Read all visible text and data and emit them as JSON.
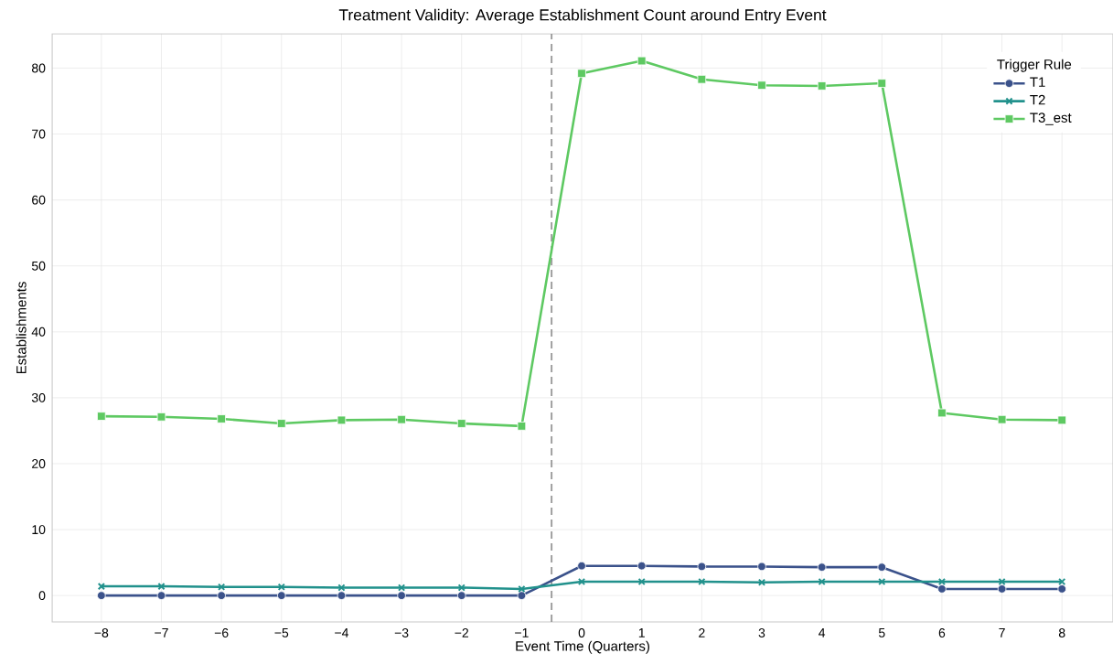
{
  "chart_data": {
    "type": "line",
    "title": "Treatment Validity: Average Establishment Count around Entry Event",
    "xlabel": "Event Time (Quarters)",
    "ylabel": "Establishments",
    "legend_title": "Trigger Rule",
    "x": [
      -8,
      -7,
      -6,
      -5,
      -4,
      -3,
      -2,
      -1,
      0,
      1,
      2,
      3,
      4,
      5,
      6,
      7,
      8
    ],
    "series": [
      {
        "name": "T1",
        "color": "#3b528b",
        "marker": "circle",
        "values": [
          0,
          0,
          0,
          0,
          0,
          0,
          0,
          0,
          4.5,
          4.5,
          4.4,
          4.4,
          4.3,
          4.3,
          1.0,
          1.0,
          1.0
        ]
      },
      {
        "name": "T2",
        "color": "#21918c",
        "marker": "cross",
        "values": [
          1.4,
          1.4,
          1.3,
          1.3,
          1.2,
          1.2,
          1.2,
          1.0,
          2.1,
          2.1,
          2.1,
          2.0,
          2.1,
          2.1,
          2.1,
          2.1,
          2.1
        ]
      },
      {
        "name": "T3_est",
        "color": "#5ec962",
        "marker": "square",
        "values": [
          27.2,
          27.1,
          26.8,
          26.1,
          26.6,
          26.7,
          26.1,
          25.7,
          79.2,
          81.1,
          78.3,
          77.4,
          77.3,
          77.7,
          27.7,
          26.7,
          26.6
        ]
      }
    ],
    "xlim": [
      -8.82,
      8.85
    ],
    "ylim": [
      -4,
      85.2
    ],
    "xticks": [
      {
        "value": -8,
        "label": "−8"
      },
      {
        "value": -7,
        "label": "−7"
      },
      {
        "value": -6,
        "label": "−6"
      },
      {
        "value": -5,
        "label": "−5"
      },
      {
        "value": -4,
        "label": "−4"
      },
      {
        "value": -3,
        "label": "−3"
      },
      {
        "value": -2,
        "label": "−2"
      },
      {
        "value": -1,
        "label": "−1"
      },
      0,
      1,
      2,
      3,
      4,
      5,
      6,
      7,
      8
    ],
    "yticks": [
      0,
      10,
      20,
      30,
      40,
      50,
      60,
      70,
      80
    ],
    "ref_lines": [
      {
        "axis": "x",
        "value": -0.5,
        "color": "#999999",
        "line_style": "dashed"
      }
    ],
    "grid": true,
    "legend": "top right",
    "line_style": "solid"
  }
}
